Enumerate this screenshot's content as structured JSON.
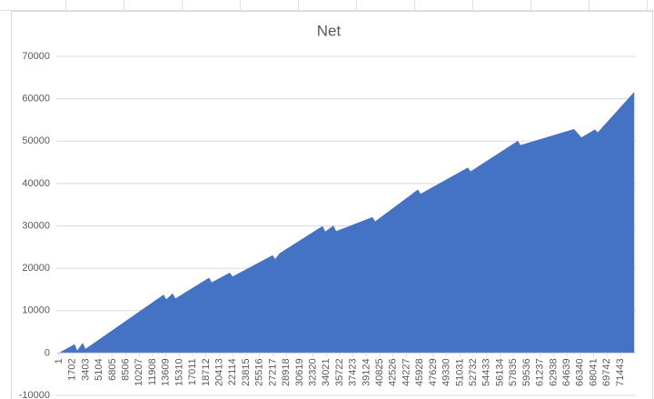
{
  "chart_data": {
    "type": "area",
    "title": "Net",
    "color": "#4472c4",
    "grid": true,
    "x": [
      1,
      1970,
      2310,
      3010,
      3350,
      13300,
      13640,
      14450,
      14800,
      19080,
      19420,
      21730,
      22080,
      27170,
      27510,
      28090,
      33530,
      33870,
      34910,
      35260,
      39880,
      40230,
      45670,
      46010,
      52020,
      52370,
      58380,
      58730,
      65550,
      66470,
      68210,
      68560,
      73180
    ],
    "values": [
      0,
      2000,
      500,
      2300,
      900,
      13700,
      12600,
      14000,
      12800,
      17700,
      16600,
      18900,
      18000,
      23000,
      22100,
      23500,
      29900,
      28600,
      30000,
      28700,
      32000,
      31000,
      38500,
      37500,
      43700,
      42800,
      50000,
      49000,
      52800,
      50800,
      52700,
      52000,
      61500
    ],
    "xlim": [
      1,
      73180
    ],
    "xticks": [
      1,
      1702,
      3403,
      5104,
      6805,
      8506,
      10207,
      11908,
      13609,
      15310,
      17011,
      18712,
      20413,
      22114,
      23815,
      25516,
      27217,
      28918,
      30619,
      32320,
      34021,
      35722,
      37423,
      39124,
      40825,
      42526,
      44227,
      45928,
      47629,
      49330,
      51031,
      52732,
      54433,
      56134,
      57835,
      59536,
      61237,
      62938,
      64639,
      66340,
      68041,
      69742,
      71443
    ],
    "ylim": [
      -10000,
      70000
    ],
    "yticks": [
      -10000,
      0,
      10000,
      20000,
      30000,
      40000,
      50000,
      60000,
      70000
    ]
  }
}
